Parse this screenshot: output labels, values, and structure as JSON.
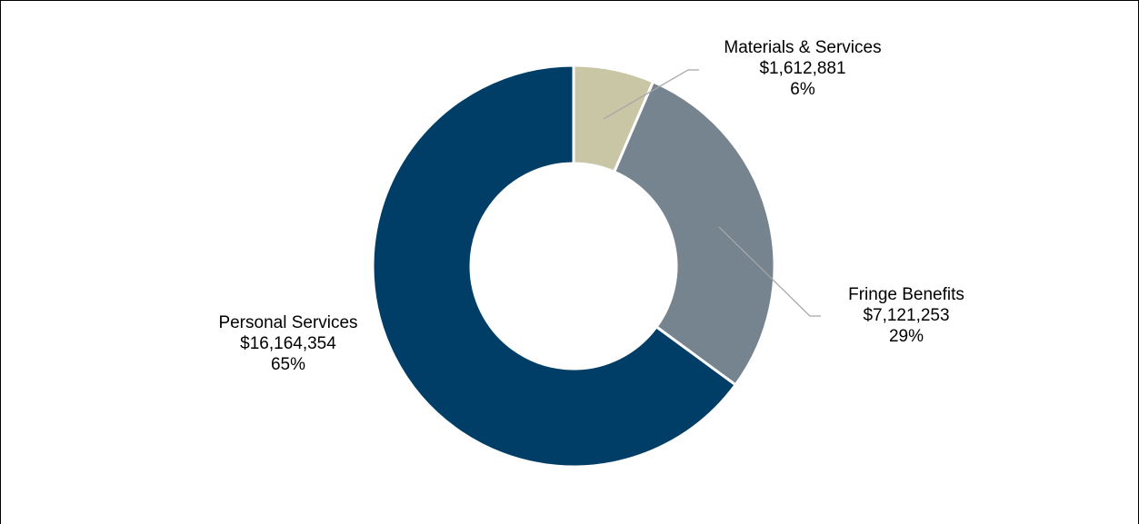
{
  "chart_data": {
    "type": "pie",
    "donut": true,
    "title": "",
    "slices": [
      {
        "name": "Materials & Services",
        "value": 1612881,
        "value_label": "$1,612,881",
        "percent_label": "6%",
        "color": "#c9c6a5"
      },
      {
        "name": "Fringe Benefits",
        "value": 7121253,
        "value_label": "$7,121,253",
        "percent_label": "29%",
        "color": "#75848f"
      },
      {
        "name": "Personal Services",
        "value": 16164354,
        "value_label": "$16,164,354",
        "percent_label": "65%",
        "color": "#003e67"
      }
    ],
    "start_angle": "12 o'clock, clockwise",
    "legend": "none",
    "label_style": "outside labels with leader lines"
  },
  "colors": {
    "background": "#ffffff",
    "slice_border": "#ffffff",
    "leader_line": "#a6a6a6",
    "frame": "#000000"
  }
}
